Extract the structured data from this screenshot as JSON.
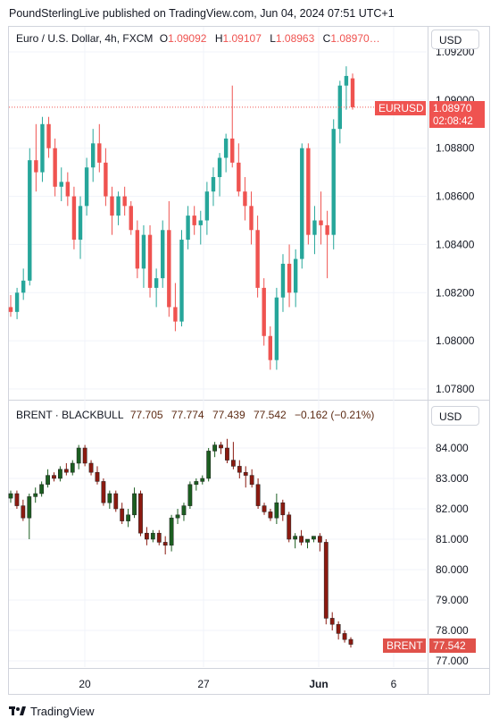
{
  "header": {
    "text": "PoundSterlingLive published on TradingView.com, Jun 04, 2024 07:51 UTC+1"
  },
  "footer": {
    "brand": "TradingView",
    "logo_icon": "tradingview-logo-icon"
  },
  "axis_button_label": "USD",
  "colors": {
    "up": "#26a69a",
    "down": "#ef5350",
    "brent_up": "#1b5e20",
    "brent_down": "#8b1a10",
    "grid": "#f0f3fa",
    "tag": "#ef5350"
  },
  "time_axis": {
    "labels": [
      "20",
      "27",
      "Jun",
      "6"
    ]
  },
  "chart_data": [
    {
      "type": "candlestick",
      "title": "Euro / U.S. Dollar, 4h, FXCM",
      "ohlc_legend": {
        "o_label": "O",
        "o": "1.09092",
        "h_label": "H",
        "h": "1.09107",
        "l_label": "L",
        "l": "1.08963",
        "c_label": "C",
        "c": "1.08970…"
      },
      "symbol_tag": "EURUSD",
      "last_price": "1.08970",
      "countdown": "02:08:42",
      "y_ticks": [
        "1.09200",
        "1.09000",
        "1.08800",
        "1.08600",
        "1.08400",
        "1.08200",
        "1.08000",
        "1.07800"
      ],
      "ylim": [
        1.0775,
        1.0925
      ],
      "candles": [
        [
          1.0814,
          1.0819,
          1.081,
          1.0812
        ],
        [
          1.0812,
          1.0822,
          1.0809,
          1.082
        ],
        [
          1.082,
          1.083,
          1.0817,
          1.0825
        ],
        [
          1.0825,
          1.088,
          1.0823,
          1.0875
        ],
        [
          1.0875,
          1.089,
          1.0862,
          1.087
        ],
        [
          1.087,
          1.0893,
          1.0866,
          1.089
        ],
        [
          1.089,
          1.0893,
          1.0876,
          1.088
        ],
        [
          1.088,
          1.0884,
          1.086,
          1.0864
        ],
        [
          1.0864,
          1.0872,
          1.0858,
          1.0866
        ],
        [
          1.0866,
          1.087,
          1.0856,
          1.086
        ],
        [
          1.086,
          1.0864,
          1.0838,
          1.0842
        ],
        [
          1.0842,
          1.086,
          1.0834,
          1.0856
        ],
        [
          1.0856,
          1.0876,
          1.0852,
          1.0872
        ],
        [
          1.0872,
          1.0888,
          1.0866,
          1.0882
        ],
        [
          1.0882,
          1.089,
          1.087,
          1.0874
        ],
        [
          1.0874,
          1.088,
          1.0856,
          1.086
        ],
        [
          1.086,
          1.0864,
          1.0844,
          1.0852
        ],
        [
          1.0852,
          1.0862,
          1.0848,
          1.086
        ],
        [
          1.086,
          1.0864,
          1.0852,
          1.0856
        ],
        [
          1.0856,
          1.0858,
          1.0844,
          1.0846
        ],
        [
          1.0846,
          1.085,
          1.0826,
          1.083
        ],
        [
          1.083,
          1.0848,
          1.0822,
          1.0844
        ],
        [
          1.0844,
          1.0848,
          1.0818,
          1.0822
        ],
        [
          1.0822,
          1.083,
          1.0814,
          1.0826
        ],
        [
          1.0826,
          1.085,
          1.0822,
          1.0846
        ],
        [
          1.0846,
          1.0858,
          1.081,
          1.0814
        ],
        [
          1.0814,
          1.0824,
          1.0804,
          1.0808
        ],
        [
          1.0808,
          1.0846,
          1.0806,
          1.0842
        ],
        [
          1.0842,
          1.0856,
          1.0838,
          1.0852
        ],
        [
          1.0852,
          1.0856,
          1.0844,
          1.0848
        ],
        [
          1.0848,
          1.0854,
          1.084,
          1.085
        ],
        [
          1.085,
          1.0866,
          1.0844,
          1.0862
        ],
        [
          1.0862,
          1.0872,
          1.0856,
          1.0868
        ],
        [
          1.0868,
          1.0878,
          1.086,
          1.0876
        ],
        [
          1.0876,
          1.0886,
          1.087,
          1.0884
        ],
        [
          1.0884,
          1.0906,
          1.0872,
          1.0874
        ],
        [
          1.0874,
          1.0882,
          1.086,
          1.0862
        ],
        [
          1.0862,
          1.0868,
          1.085,
          1.0856
        ],
        [
          1.0856,
          1.0862,
          1.084,
          1.0846
        ],
        [
          1.0846,
          1.0852,
          1.0818,
          1.0822
        ],
        [
          1.0822,
          1.0826,
          1.0798,
          1.0802
        ],
        [
          1.0802,
          1.0806,
          1.0788,
          1.0792
        ],
        [
          1.0792,
          1.0822,
          1.0788,
          1.0818
        ],
        [
          1.0818,
          1.0836,
          1.0812,
          1.0832
        ],
        [
          1.0832,
          1.084,
          1.0814,
          1.082
        ],
        [
          1.082,
          1.0838,
          1.0814,
          1.0834
        ],
        [
          1.0834,
          1.0882,
          1.083,
          1.088
        ],
        [
          1.088,
          1.0882,
          1.084,
          1.0844
        ],
        [
          1.0844,
          1.0856,
          1.0836,
          1.085
        ],
        [
          1.085,
          1.0862,
          1.084,
          1.0848
        ],
        [
          1.0848,
          1.0854,
          1.0826,
          1.0844
        ],
        [
          1.0844,
          1.0892,
          1.0838,
          1.0888
        ],
        [
          1.0888,
          1.0908,
          1.0882,
          1.0906
        ],
        [
          1.0906,
          1.0914,
          1.0896,
          1.091
        ],
        [
          1.0909,
          1.0911,
          1.0896,
          1.0897
        ]
      ]
    },
    {
      "type": "candlestick",
      "title": "BRENT · BLACKBULL",
      "ohlc_legend": {
        "o": "77.705",
        "h": "77.774",
        "l": "77.439",
        "c": "77.542",
        "change": "−0.162 (−0.21%)"
      },
      "symbol_tag": "BRENT",
      "last_price": "77.542",
      "y_ticks": [
        "84.000",
        "83.000",
        "82.000",
        "81.000",
        "80.000",
        "79.000",
        "78.000",
        "77.000"
      ],
      "ylim": [
        76.8,
        84.7
      ],
      "candles": [
        [
          82.35,
          82.6,
          82.2,
          82.5
        ],
        [
          82.5,
          82.6,
          82.0,
          82.1
        ],
        [
          82.1,
          82.3,
          81.6,
          81.7
        ],
        [
          81.7,
          82.5,
          81.0,
          82.4
        ],
        [
          82.4,
          82.7,
          82.2,
          82.5
        ],
        [
          82.5,
          82.9,
          82.4,
          82.8
        ],
        [
          82.8,
          83.3,
          82.7,
          83.1
        ],
        [
          83.1,
          83.2,
          82.9,
          83.0
        ],
        [
          83.0,
          83.4,
          82.9,
          83.3
        ],
        [
          83.3,
          83.5,
          83.1,
          83.2
        ],
        [
          83.2,
          83.6,
          83.1,
          83.5
        ],
        [
          83.5,
          84.1,
          83.3,
          84.0
        ],
        [
          84.0,
          84.1,
          83.4,
          83.5
        ],
        [
          83.5,
          83.6,
          83.1,
          83.2
        ],
        [
          83.2,
          83.4,
          82.8,
          82.9
        ],
        [
          82.9,
          83.0,
          82.1,
          82.2
        ],
        [
          82.2,
          82.6,
          82.0,
          82.5
        ],
        [
          82.5,
          82.6,
          81.9,
          82.0
        ],
        [
          82.0,
          82.2,
          81.5,
          81.6
        ],
        [
          81.6,
          82.0,
          81.4,
          81.8
        ],
        [
          81.8,
          82.7,
          81.7,
          82.5
        ],
        [
          82.5,
          82.6,
          81.1,
          81.2
        ],
        [
          81.2,
          81.4,
          80.8,
          81.0
        ],
        [
          81.0,
          81.3,
          80.9,
          81.2
        ],
        [
          81.2,
          81.3,
          80.8,
          80.9
        ],
        [
          80.9,
          81.1,
          80.5,
          80.8
        ],
        [
          80.8,
          81.8,
          80.6,
          81.7
        ],
        [
          81.7,
          82.0,
          81.5,
          81.8
        ],
        [
          81.8,
          82.2,
          81.6,
          82.1
        ],
        [
          82.1,
          82.9,
          82.0,
          82.8
        ],
        [
          82.8,
          83.0,
          82.6,
          82.9
        ],
        [
          82.9,
          83.1,
          82.8,
          83.0
        ],
        [
          83.0,
          84.0,
          82.9,
          83.9
        ],
        [
          83.9,
          84.2,
          83.7,
          84.1
        ],
        [
          84.1,
          84.2,
          83.8,
          84.0
        ],
        [
          84.0,
          84.3,
          83.5,
          83.6
        ],
        [
          83.6,
          84.2,
          83.3,
          83.4
        ],
        [
          83.4,
          83.6,
          83.0,
          83.2
        ],
        [
          83.2,
          83.4,
          82.7,
          83.1
        ],
        [
          83.1,
          83.3,
          82.7,
          82.8
        ],
        [
          82.8,
          83.0,
          82.0,
          82.1
        ],
        [
          82.1,
          82.2,
          81.8,
          81.9
        ],
        [
          81.9,
          82.0,
          81.6,
          81.7
        ],
        [
          81.7,
          82.5,
          81.5,
          82.2
        ],
        [
          82.2,
          82.3,
          81.6,
          81.8
        ],
        [
          81.8,
          81.9,
          80.9,
          81.0
        ],
        [
          81.0,
          81.2,
          80.7,
          81.1
        ],
        [
          81.1,
          81.3,
          80.8,
          80.9
        ],
        [
          80.9,
          81.0,
          80.7,
          81.0
        ],
        [
          81.0,
          81.1,
          80.9,
          81.1
        ],
        [
          81.1,
          81.2,
          80.6,
          80.9
        ],
        [
          80.9,
          81.0,
          78.2,
          78.4
        ],
        [
          78.4,
          78.6,
          78.0,
          78.2
        ],
        [
          78.2,
          78.3,
          77.7,
          77.9
        ],
        [
          77.9,
          78.0,
          77.6,
          77.7
        ],
        [
          77.705,
          77.774,
          77.439,
          77.542
        ]
      ]
    }
  ]
}
